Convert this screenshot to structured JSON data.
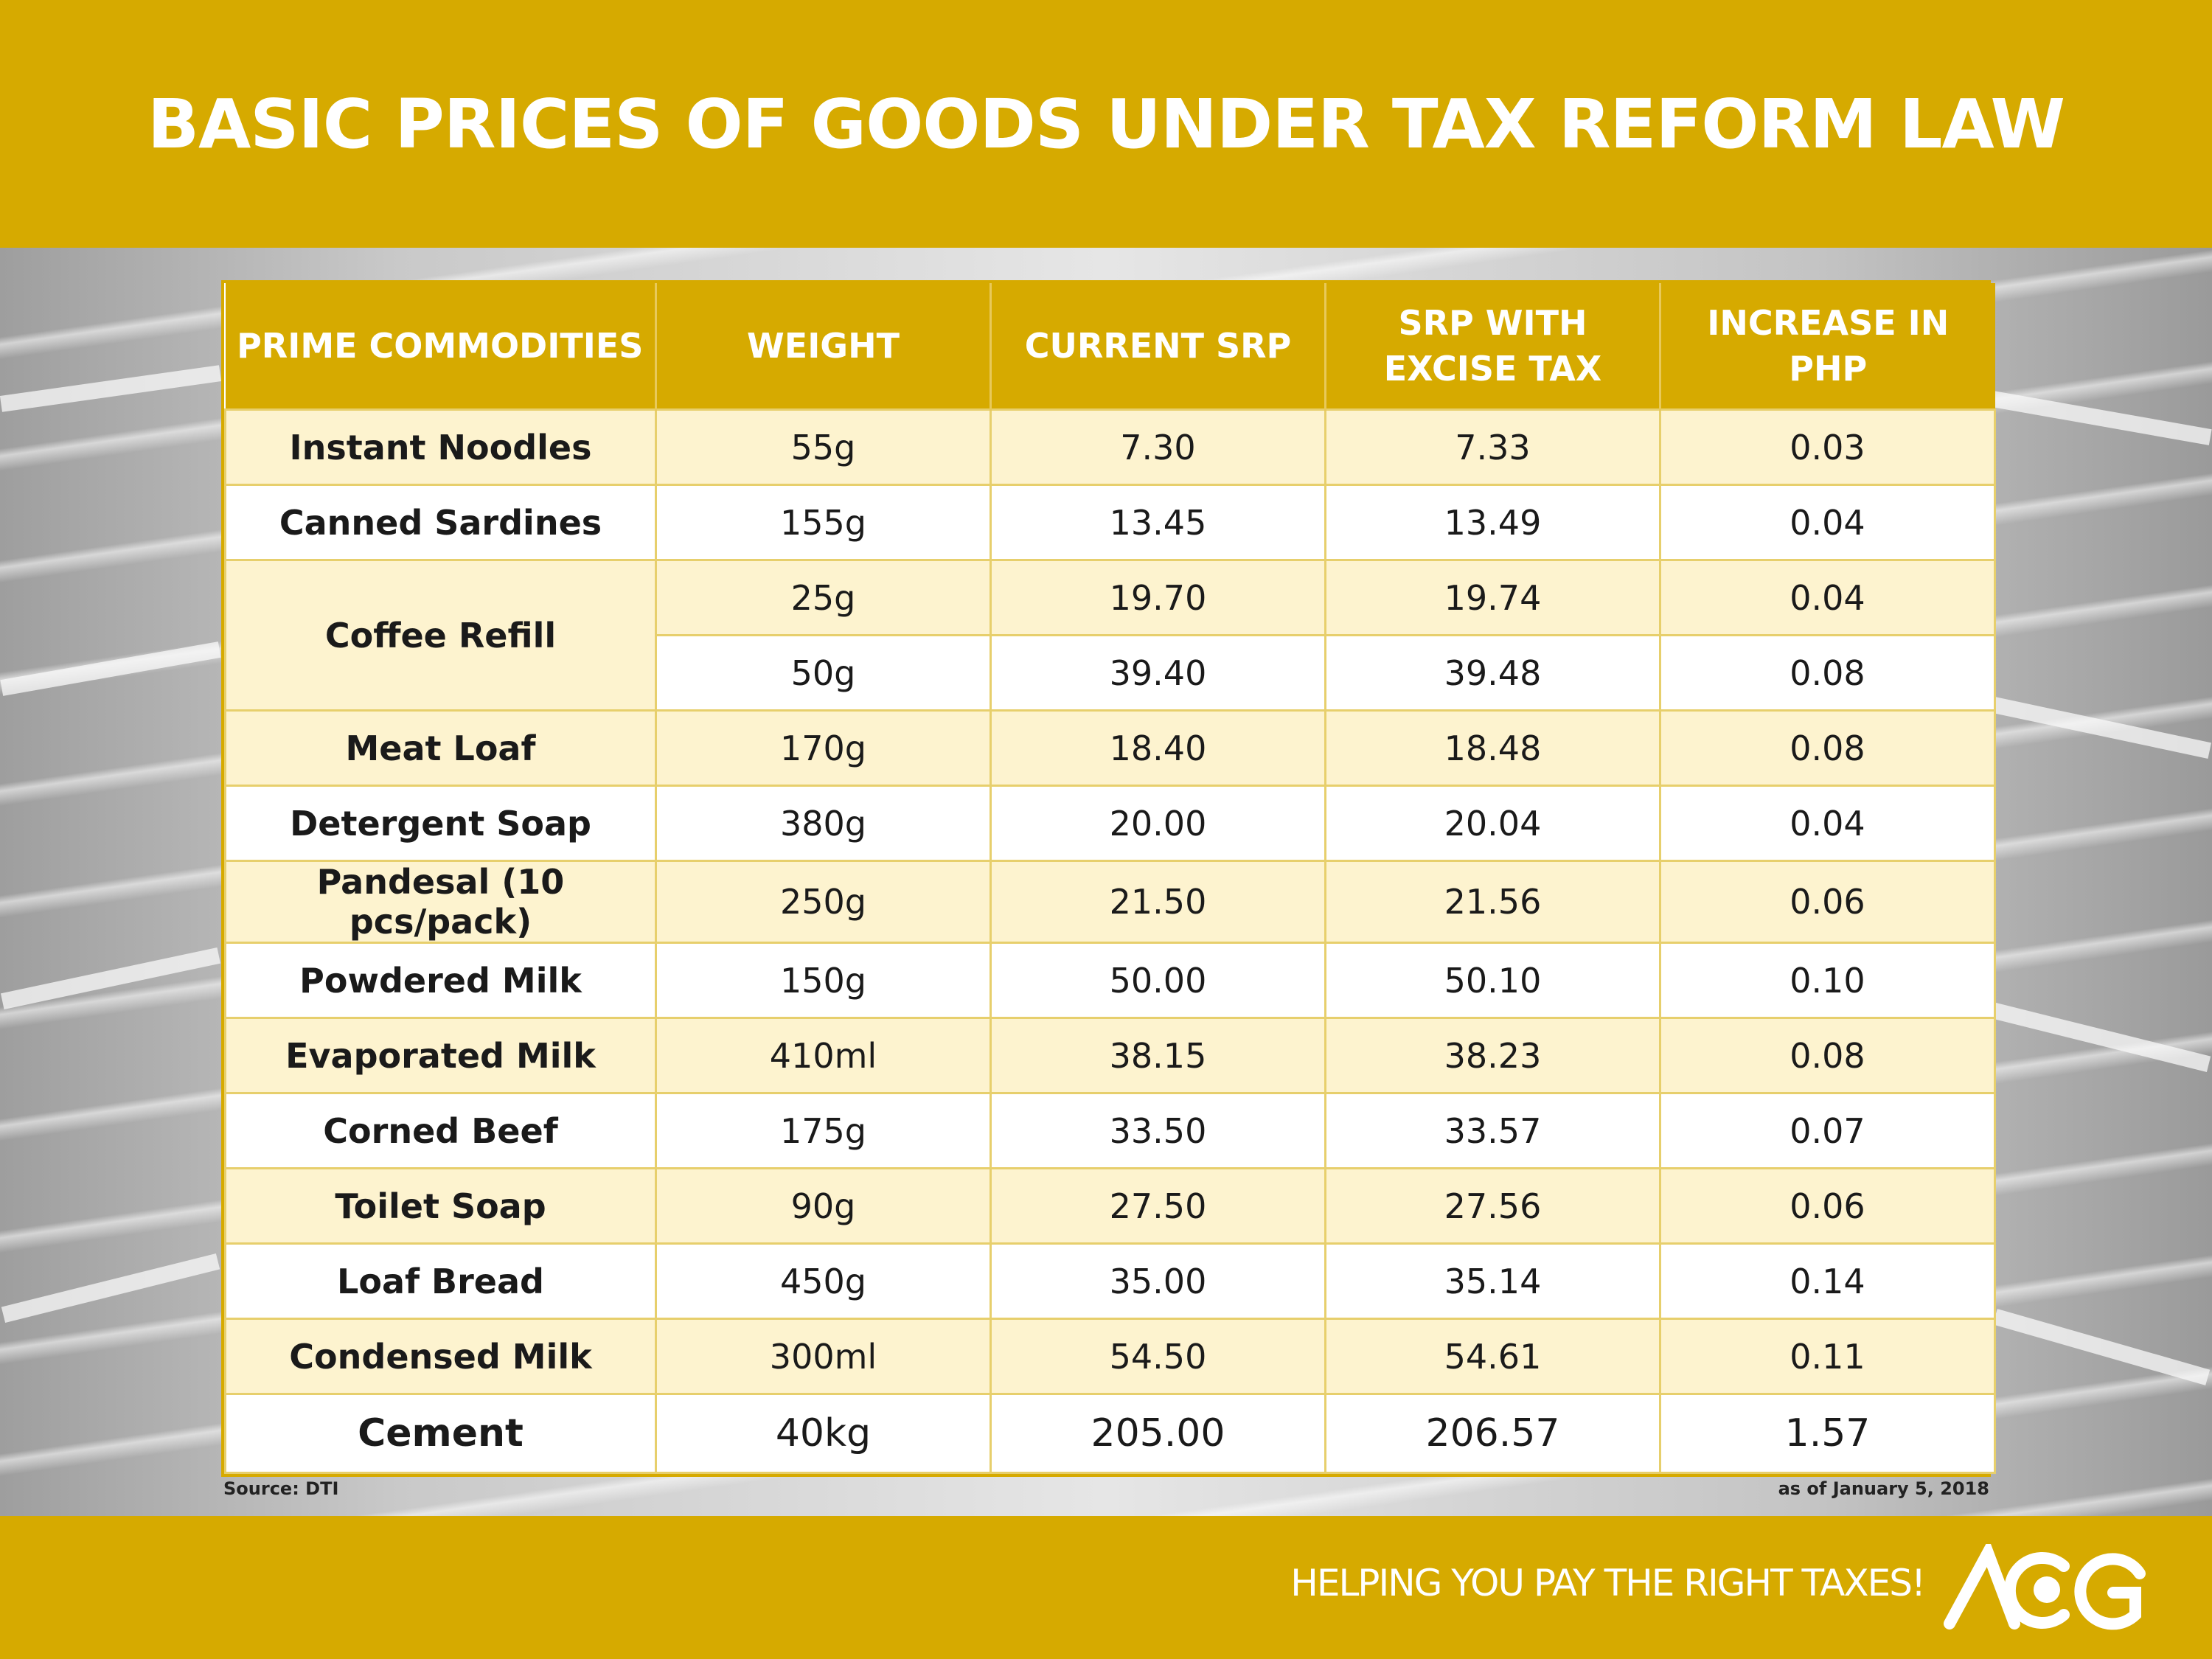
{
  "title": "BASIC PRICES OF GOODS UNDER TAX REFORM LAW",
  "table": {
    "headers": [
      "PRIME COMMODITIES",
      "WEIGHT",
      "CURRENT SRP",
      "SRP WITH EXCISE TAX",
      "INCREASE IN PHP"
    ],
    "rows": [
      {
        "item": "Instant Noodles",
        "weight": "55g",
        "current": "7.30",
        "with_tax": "7.33",
        "increase": "0.03"
      },
      {
        "item": "Canned Sardines",
        "weight": "155g",
        "current": "13.45",
        "with_tax": "13.49",
        "increase": "0.04"
      },
      {
        "item": "Coffee Refill",
        "weight": "25g",
        "current": "19.70",
        "with_tax": "19.74",
        "increase": "0.04"
      },
      {
        "item": "",
        "weight": "50g",
        "current": "39.40",
        "with_tax": "39.48",
        "increase": "0.08"
      },
      {
        "item": "Meat Loaf",
        "weight": "170g",
        "current": "18.40",
        "with_tax": "18.48",
        "increase": "0.08"
      },
      {
        "item": "Detergent Soap",
        "weight": "380g",
        "current": "20.00",
        "with_tax": "20.04",
        "increase": "0.04"
      },
      {
        "item": "Pandesal (10 pcs/pack)",
        "weight": "250g",
        "current": "21.50",
        "with_tax": "21.56",
        "increase": "0.06"
      },
      {
        "item": "Powdered Milk",
        "weight": "150g",
        "current": "50.00",
        "with_tax": "50.10",
        "increase": "0.10"
      },
      {
        "item": "Evaporated Milk",
        "weight": "410ml",
        "current": "38.15",
        "with_tax": "38.23",
        "increase": "0.08"
      },
      {
        "item": "Corned Beef",
        "weight": "175g",
        "current": "33.50",
        "with_tax": "33.57",
        "increase": "0.07"
      },
      {
        "item": "Toilet Soap",
        "weight": "90g",
        "current": "27.50",
        "with_tax": "27.56",
        "increase": "0.06"
      },
      {
        "item": "Loaf Bread",
        "weight": "450g",
        "current": "35.00",
        "with_tax": "35.14",
        "increase": "0.14"
      },
      {
        "item": "Condensed Milk",
        "weight": "300ml",
        "current": "54.50",
        "with_tax": "54.61",
        "increase": "0.11"
      },
      {
        "item": "Cement",
        "weight": "40kg",
        "current": "205.00",
        "with_tax": "206.57",
        "increase": "1.57"
      }
    ]
  },
  "source": "Source: DTI",
  "as_of": "as of January 5, 2018",
  "tagline": "HELPING YOU PAY THE RIGHT TAXES!",
  "logo_text": "ACG",
  "colors": {
    "accent": "#d6aa00",
    "row_tint": "#fdf3cf",
    "border": "#e7cf6c"
  },
  "chart_data": {
    "type": "table",
    "title": "BASIC PRICES OF GOODS UNDER TAX REFORM LAW",
    "columns": [
      "PRIME COMMODITIES",
      "WEIGHT",
      "CURRENT SRP",
      "SRP WITH EXCISE TAX",
      "INCREASE IN PHP"
    ],
    "rows": [
      [
        "Instant Noodles",
        "55g",
        7.3,
        7.33,
        0.03
      ],
      [
        "Canned Sardines",
        "155g",
        13.45,
        13.49,
        0.04
      ],
      [
        "Coffee Refill",
        "25g",
        19.7,
        19.74,
        0.04
      ],
      [
        "Coffee Refill",
        "50g",
        39.4,
        39.48,
        0.08
      ],
      [
        "Meat Loaf",
        "170g",
        18.4,
        18.48,
        0.08
      ],
      [
        "Detergent Soap",
        "380g",
        20.0,
        20.04,
        0.04
      ],
      [
        "Pandesal (10 pcs/pack)",
        "250g",
        21.5,
        21.56,
        0.06
      ],
      [
        "Powdered Milk",
        "150g",
        50.0,
        50.1,
        0.1
      ],
      [
        "Evaporated Milk",
        "410ml",
        38.15,
        38.23,
        0.08
      ],
      [
        "Corned Beef",
        "175g",
        33.5,
        33.57,
        0.07
      ],
      [
        "Toilet Soap",
        "90g",
        27.5,
        27.56,
        0.06
      ],
      [
        "Loaf Bread",
        "450g",
        35.0,
        35.14,
        0.14
      ],
      [
        "Condensed Milk",
        "300ml",
        54.5,
        54.61,
        0.11
      ],
      [
        "Cement",
        "40kg",
        205.0,
        206.57,
        1.57
      ]
    ]
  }
}
